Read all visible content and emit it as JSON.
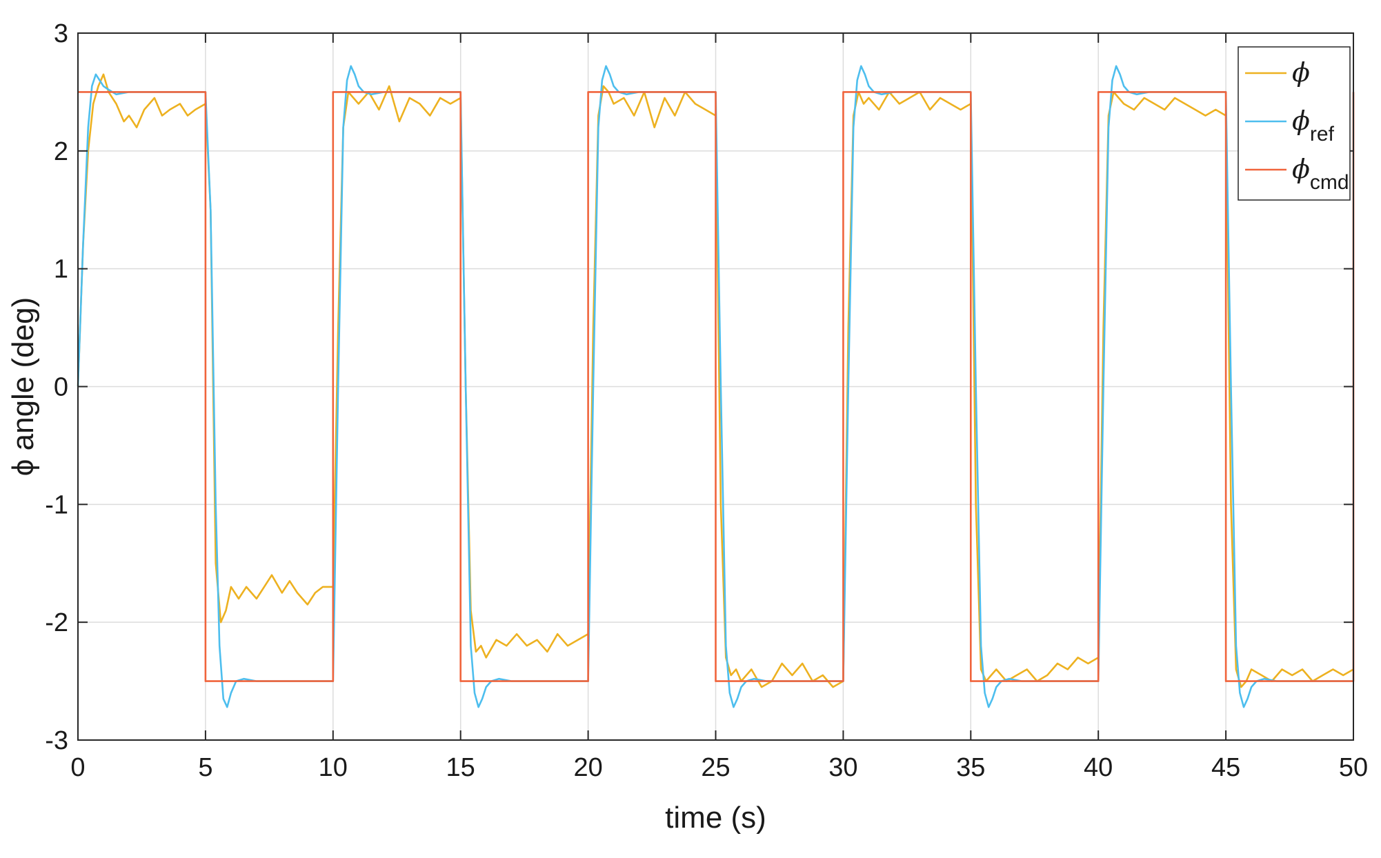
{
  "chart_data": {
    "type": "line",
    "title": "",
    "xlabel": "time (s)",
    "ylabel": "ϕ angle (deg)",
    "xlim": [
      0,
      50
    ],
    "ylim": [
      -3,
      3
    ],
    "xticks": [
      0,
      5,
      10,
      15,
      20,
      25,
      30,
      35,
      40,
      45,
      50
    ],
    "yticks": [
      -3,
      -2,
      -1,
      0,
      1,
      2,
      3
    ],
    "grid": true,
    "legend_position": "top-right",
    "series": [
      {
        "name": "ϕ",
        "name_sub": "",
        "color": "#EDB120",
        "x": [
          0,
          0.2,
          0.4,
          0.6,
          0.8,
          1.0,
          1.2,
          1.5,
          1.8,
          2.0,
          2.3,
          2.6,
          3.0,
          3.3,
          3.6,
          4.0,
          4.3,
          4.6,
          5.0,
          5.2,
          5.4,
          5.6,
          5.8,
          6.0,
          6.3,
          6.6,
          7.0,
          7.3,
          7.6,
          8.0,
          8.3,
          8.6,
          9.0,
          9.3,
          9.6,
          10.0,
          10.2,
          10.4,
          10.6,
          10.8,
          11.0,
          11.4,
          11.8,
          12.2,
          12.6,
          13.0,
          13.4,
          13.8,
          14.2,
          14.6,
          15.0,
          15.2,
          15.4,
          15.6,
          15.8,
          16.0,
          16.4,
          16.8,
          17.2,
          17.6,
          18.0,
          18.4,
          18.8,
          19.2,
          19.6,
          20.0,
          20.2,
          20.4,
          20.6,
          20.8,
          21.0,
          21.4,
          21.8,
          22.2,
          22.6,
          23.0,
          23.4,
          23.8,
          24.2,
          24.6,
          25.0,
          25.2,
          25.4,
          25.6,
          25.8,
          26.0,
          26.4,
          26.8,
          27.2,
          27.6,
          28.0,
          28.4,
          28.8,
          29.2,
          29.6,
          30.0,
          30.2,
          30.4,
          30.6,
          30.8,
          31.0,
          31.4,
          31.8,
          32.2,
          32.6,
          33.0,
          33.4,
          33.8,
          34.2,
          34.6,
          35.0,
          35.2,
          35.4,
          35.6,
          35.8,
          36.0,
          36.4,
          36.8,
          37.2,
          37.6,
          38.0,
          38.4,
          38.8,
          39.2,
          39.6,
          40.0,
          40.2,
          40.4,
          40.6,
          40.8,
          41.0,
          41.4,
          41.8,
          42.2,
          42.6,
          43.0,
          43.4,
          43.8,
          44.2,
          44.6,
          45.0,
          45.2,
          45.4,
          45.6,
          45.8,
          46.0,
          46.4,
          46.8,
          47.2,
          47.6,
          48.0,
          48.4,
          48.8,
          49.2,
          49.6,
          50.0
        ],
        "y": [
          0.0,
          1.2,
          2.0,
          2.4,
          2.55,
          2.65,
          2.5,
          2.4,
          2.25,
          2.3,
          2.2,
          2.35,
          2.45,
          2.3,
          2.35,
          2.4,
          2.3,
          2.35,
          2.4,
          1.5,
          -1.5,
          -2.0,
          -1.9,
          -1.7,
          -1.8,
          -1.7,
          -1.8,
          -1.7,
          -1.6,
          -1.75,
          -1.65,
          -1.75,
          -1.85,
          -1.75,
          -1.7,
          -1.7,
          0.5,
          2.2,
          2.5,
          2.45,
          2.4,
          2.5,
          2.35,
          2.55,
          2.25,
          2.45,
          2.4,
          2.3,
          2.45,
          2.4,
          2.45,
          0.0,
          -1.9,
          -2.25,
          -2.2,
          -2.3,
          -2.15,
          -2.2,
          -2.1,
          -2.2,
          -2.15,
          -2.25,
          -2.1,
          -2.2,
          -2.15,
          -2.1,
          0.5,
          2.3,
          2.55,
          2.5,
          2.4,
          2.45,
          2.3,
          2.5,
          2.2,
          2.45,
          2.3,
          2.5,
          2.4,
          2.35,
          2.3,
          -1.0,
          -2.3,
          -2.45,
          -2.4,
          -2.5,
          -2.4,
          -2.55,
          -2.5,
          -2.35,
          -2.45,
          -2.35,
          -2.5,
          -2.45,
          -2.55,
          -2.5,
          0.5,
          2.3,
          2.5,
          2.4,
          2.45,
          2.35,
          2.5,
          2.4,
          2.45,
          2.5,
          2.35,
          2.45,
          2.4,
          2.35,
          2.4,
          -1.0,
          -2.4,
          -2.5,
          -2.45,
          -2.4,
          -2.5,
          -2.45,
          -2.4,
          -2.5,
          -2.45,
          -2.35,
          -2.4,
          -2.3,
          -2.35,
          -2.3,
          0.5,
          2.3,
          2.5,
          2.45,
          2.4,
          2.35,
          2.45,
          2.4,
          2.35,
          2.45,
          2.4,
          2.35,
          2.3,
          2.35,
          2.3,
          -1.0,
          -2.4,
          -2.55,
          -2.5,
          -2.4,
          -2.45,
          -2.5,
          -2.4,
          -2.45,
          -2.4,
          -2.5,
          -2.45,
          -2.4,
          -2.45,
          -2.4
        ]
      },
      {
        "name": "ϕ",
        "name_sub": "ref",
        "color": "#4DBEEE",
        "x": [
          0,
          0.2,
          0.4,
          0.55,
          0.7,
          0.85,
          1.0,
          1.2,
          1.5,
          2.0,
          5.0,
          5.2,
          5.4,
          5.55,
          5.7,
          5.85,
          6.0,
          6.2,
          6.5,
          7.0,
          10.0,
          10.2,
          10.4,
          10.55,
          10.7,
          10.85,
          11.0,
          11.2,
          11.5,
          12.0,
          15.0,
          15.2,
          15.4,
          15.55,
          15.7,
          15.85,
          16.0,
          16.2,
          16.5,
          17.0,
          20.0,
          20.2,
          20.4,
          20.55,
          20.7,
          20.85,
          21.0,
          21.2,
          21.5,
          22.0,
          25.0,
          25.2,
          25.4,
          25.55,
          25.7,
          25.85,
          26.0,
          26.2,
          26.5,
          27.0,
          30.0,
          30.2,
          30.4,
          30.55,
          30.7,
          30.85,
          31.0,
          31.2,
          31.5,
          32.0,
          35.0,
          35.2,
          35.4,
          35.55,
          35.7,
          35.85,
          36.0,
          36.2,
          36.5,
          37.0,
          40.0,
          40.2,
          40.4,
          40.55,
          40.7,
          40.85,
          41.0,
          41.2,
          41.5,
          42.0,
          45.0,
          45.2,
          45.4,
          45.55,
          45.7,
          45.85,
          46.0,
          46.2,
          46.5,
          47.0,
          50.0
        ],
        "y": [
          0.0,
          1.2,
          2.2,
          2.55,
          2.65,
          2.6,
          2.55,
          2.52,
          2.48,
          2.5,
          2.5,
          1.5,
          -1.0,
          -2.2,
          -2.65,
          -2.72,
          -2.6,
          -2.5,
          -2.48,
          -2.5,
          -2.5,
          0.0,
          2.2,
          2.6,
          2.72,
          2.65,
          2.55,
          2.5,
          2.48,
          2.5,
          2.5,
          0.0,
          -2.2,
          -2.6,
          -2.72,
          -2.65,
          -2.55,
          -2.5,
          -2.48,
          -2.5,
          -2.5,
          0.0,
          2.2,
          2.6,
          2.72,
          2.65,
          2.55,
          2.5,
          2.48,
          2.5,
          2.5,
          0.0,
          -2.2,
          -2.6,
          -2.72,
          -2.65,
          -2.55,
          -2.5,
          -2.48,
          -2.5,
          -2.5,
          0.0,
          2.2,
          2.6,
          2.72,
          2.65,
          2.55,
          2.5,
          2.48,
          2.5,
          2.5,
          0.0,
          -2.2,
          -2.6,
          -2.72,
          -2.65,
          -2.55,
          -2.5,
          -2.48,
          -2.5,
          -2.5,
          0.0,
          2.2,
          2.6,
          2.72,
          2.65,
          2.55,
          2.5,
          2.48,
          2.5,
          2.5,
          0.0,
          -2.2,
          -2.6,
          -2.72,
          -2.65,
          -2.55,
          -2.5,
          -2.48,
          -2.5,
          -2.5
        ]
      },
      {
        "name": "ϕ",
        "name_sub": "cmd",
        "color": "#F0643C",
        "x": [
          0,
          5,
          5,
          10,
          10,
          15,
          15,
          20,
          20,
          25,
          25,
          30,
          30,
          35,
          35,
          40,
          40,
          45,
          45,
          50,
          50
        ],
        "y": [
          2.5,
          2.5,
          -2.5,
          -2.5,
          2.5,
          2.5,
          -2.5,
          -2.5,
          2.5,
          2.5,
          -2.5,
          -2.5,
          2.5,
          2.5,
          -2.5,
          -2.5,
          2.5,
          2.5,
          -2.5,
          -2.5,
          2.5
        ]
      }
    ]
  }
}
